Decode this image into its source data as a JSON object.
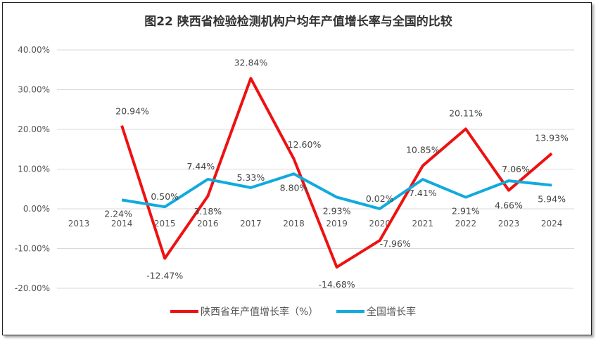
{
  "chart_data": {
    "type": "line",
    "title": "图22  陕西省检验检测机构户均年产值增长率与全国的比较",
    "categories": [
      "2013",
      "2014",
      "2015",
      "2016",
      "2017",
      "2018",
      "2019",
      "2020",
      "2021",
      "2022",
      "2023",
      "2024"
    ],
    "ylim": [
      -20,
      40
    ],
    "yticks": [
      "-20.00%",
      "-10.00%",
      "0.00%",
      "10.00%",
      "20.00%",
      "30.00%",
      "40.00%"
    ],
    "ytick_values": [
      -20,
      -10,
      0,
      10,
      20,
      30,
      40
    ],
    "grid": true,
    "legend": "bottom",
    "series": [
      {
        "name": "陕西省年产值增长率（%）",
        "color": "#ee1111",
        "values": [
          null,
          20.94,
          -12.47,
          3.18,
          32.84,
          12.6,
          -14.68,
          -7.96,
          10.85,
          20.11,
          4.66,
          13.93
        ],
        "labels": [
          "",
          "20.94%",
          "-12.47%",
          "3.18%",
          "32.84%",
          "12.60%",
          "-14.68%",
          "-7.96%",
          "10.85%",
          "20.11%",
          "4.66%",
          "13.93%"
        ]
      },
      {
        "name": "全国增长率",
        "color": "#11aadd",
        "values": [
          null,
          2.24,
          0.5,
          7.44,
          5.33,
          8.8,
          2.93,
          0.02,
          7.41,
          2.91,
          7.06,
          5.94
        ],
        "labels": [
          "",
          "2.24%",
          "0.50%",
          "7.44%",
          "5.33%",
          "8.80%",
          "2.93%",
          "0.02%",
          "7.41%",
          "2.91%",
          "7.06%",
          "5.94%"
        ]
      }
    ]
  }
}
